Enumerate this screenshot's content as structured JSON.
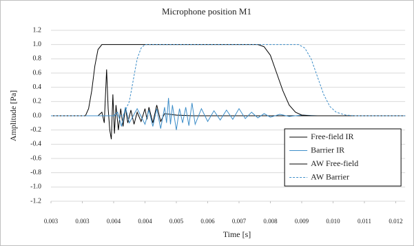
{
  "chart_data": {
    "type": "line",
    "title": "Microphone position M1",
    "x_label": "Time [s]",
    "y_label": "Amplitude [Pa]",
    "xlim": [
      0.003,
      0.0123
    ],
    "ylim": [
      -1.2,
      1.2
    ],
    "xticks": [
      0.003,
      {
        "value": 0.0034,
        "label": "0.003"
      },
      {
        "value": 0.0038,
        "label": "0.004"
      },
      {
        "value": 0.0042,
        "label": "0.004"
      },
      0.005,
      0.006,
      0.007,
      0.008,
      0.009,
      {
        "value": 0.01,
        "label": "0.010"
      },
      0.011,
      0.012
    ],
    "yticks": [
      1.2,
      {
        "value": 1,
        "label": "1.0"
      },
      0.8,
      0.6,
      0.4,
      0.2,
      {
        "value": 0,
        "label": "0.0"
      },
      -0.2,
      -0.4,
      -0.6,
      -0.8,
      {
        "value": -1,
        "label": "-1.0"
      },
      -1.2
    ],
    "grid": true,
    "legend": "lower right",
    "series": [
      {
        "name": "Free-field IR",
        "color": "#000000",
        "dashed": false,
        "x": [
          0.003,
          0.0036,
          0.00365,
          0.00368,
          0.00371,
          0.00373,
          0.00375,
          0.00377,
          0.00379,
          0.00381,
          0.00383,
          0.00386,
          0.00389,
          0.00392,
          0.00395,
          0.00398,
          0.00402,
          0.00406,
          0.0041,
          0.00415,
          0.0042,
          0.00425,
          0.0043,
          0.0044,
          0.0045,
          0.0046,
          0.0047,
          0.005,
          0.0055,
          0.0123
        ],
        "values": [
          0,
          0,
          0.05,
          -0.1,
          0.65,
          0.1,
          -0.2,
          -0.33,
          0.3,
          -0.25,
          0.15,
          -0.2,
          0.1,
          -0.15,
          0.12,
          -0.1,
          0.08,
          -0.12,
          0.05,
          -0.08,
          0.1,
          -0.05,
          0.12,
          -0.1,
          0.15,
          -0.08,
          0.03,
          0.01,
          0,
          0
        ]
      },
      {
        "name": "Barrier IR",
        "color": "#3c8dc8",
        "dashed": false,
        "x": [
          0.003,
          0.0038,
          0.00385,
          0.0039,
          0.00395,
          0.004,
          0.0041,
          0.0042,
          0.0043,
          0.0044,
          0.0045,
          0.0046,
          0.0047,
          0.00475,
          0.0048,
          0.00485,
          0.0049,
          0.005,
          0.0051,
          0.0052,
          0.0053,
          0.0054,
          0.0055,
          0.0056,
          0.0058,
          0.006,
          0.0062,
          0.0064,
          0.0066,
          0.0068,
          0.007,
          0.0072,
          0.0074,
          0.0076,
          0.0078,
          0.008,
          0.0083,
          0.0086,
          0.009,
          0.0095,
          0.0123
        ],
        "values": [
          0,
          0,
          0.05,
          -0.15,
          0.12,
          -0.1,
          0.1,
          -0.12,
          0.08,
          -0.15,
          0.1,
          -0.18,
          0.12,
          -0.1,
          0.25,
          -0.12,
          0.15,
          -0.2,
          0.1,
          -0.1,
          0.12,
          -0.14,
          0.18,
          -0.12,
          0.1,
          -0.08,
          0.07,
          -0.06,
          0.08,
          -0.05,
          0.1,
          -0.04,
          0.05,
          -0.03,
          0.03,
          -0.02,
          0.02,
          -0.01,
          0.01,
          0,
          0
        ]
      },
      {
        "name": "AW Free-field",
        "color": "#000000",
        "dashed": false,
        "x": [
          0.003,
          0.00344,
          0.00348,
          0.00352,
          0.00356,
          0.0036,
          0.00365,
          0.0076,
          0.0078,
          0.008,
          0.0082,
          0.0084,
          0.0086,
          0.0088,
          0.009,
          0.0093,
          0.0123
        ],
        "values": [
          0,
          0,
          0.1,
          0.35,
          0.7,
          0.93,
          1,
          1,
          0.97,
          0.85,
          0.6,
          0.35,
          0.15,
          0.05,
          0.01,
          0,
          0
        ]
      },
      {
        "name": "AW Barrier",
        "color": "#3c8dc8",
        "dashed": true,
        "x": [
          0.003,
          0.00392,
          0.004,
          0.00405,
          0.0041,
          0.00415,
          0.0042,
          0.0089,
          0.0091,
          0.0093,
          0.0095,
          0.0097,
          0.0099,
          0.0101,
          0.0104,
          0.0107,
          0.0123
        ],
        "values": [
          0,
          0,
          0.2,
          0.5,
          0.8,
          0.95,
          1,
          1,
          0.95,
          0.8,
          0.55,
          0.3,
          0.13,
          0.05,
          0.01,
          0,
          0
        ]
      }
    ]
  }
}
